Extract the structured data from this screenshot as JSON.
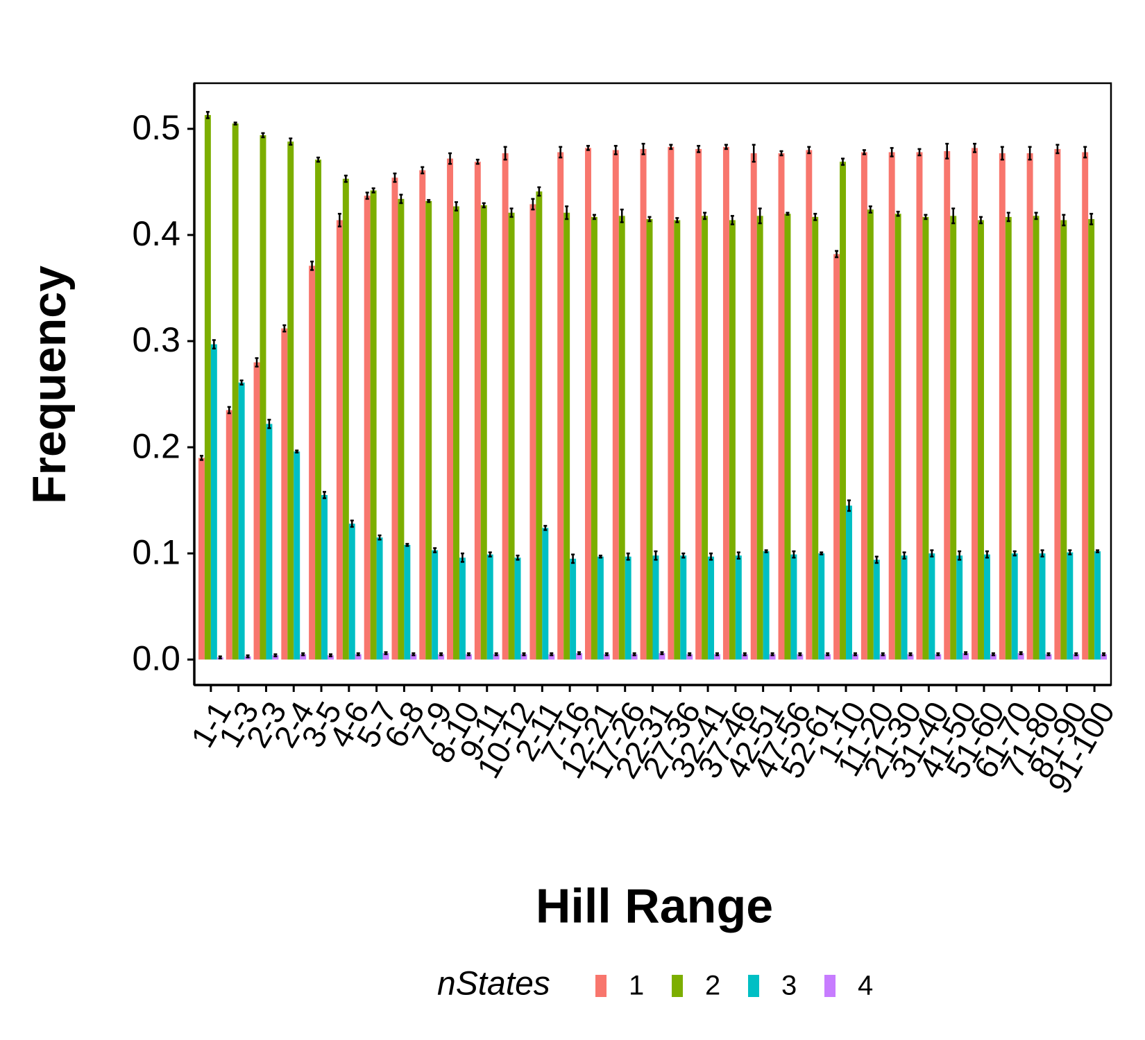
{
  "chart_data": {
    "type": "bar",
    "x_label": "Hill Range",
    "y_label": "Frequency",
    "legend_title": "nStates",
    "categories": [
      "1-1",
      "1-3",
      "2-3",
      "2-4",
      "3-5",
      "4-6",
      "5-7",
      "6-8",
      "7-9",
      "8-10",
      "9-11",
      "10-12",
      "2-11",
      "7-16",
      "12-21",
      "17-26",
      "22-31",
      "27-36",
      "32-41",
      "37-46",
      "42-51",
      "47-56",
      "52-61",
      "1-10",
      "11-20",
      "21-30",
      "31-40",
      "41-50",
      "51-60",
      "61-70",
      "71-80",
      "81-90",
      "91-100"
    ],
    "series": [
      {
        "name": "1",
        "color": "#F8766D",
        "values": [
          0.19,
          0.235,
          0.28,
          0.312,
          0.371,
          0.414,
          0.437,
          0.454,
          0.461,
          0.472,
          0.469,
          0.477,
          0.429,
          0.478,
          0.482,
          0.48,
          0.481,
          0.483,
          0.481,
          0.483,
          0.477,
          0.477,
          0.48,
          0.382,
          0.478,
          0.478,
          0.478,
          0.479,
          0.482,
          0.477,
          0.477,
          0.481,
          0.478
        ],
        "errors": [
          0.002,
          0.003,
          0.004,
          0.003,
          0.004,
          0.006,
          0.003,
          0.004,
          0.003,
          0.005,
          0.002,
          0.006,
          0.005,
          0.005,
          0.002,
          0.004,
          0.005,
          0.002,
          0.003,
          0.002,
          0.008,
          0.002,
          0.003,
          0.003,
          0.002,
          0.004,
          0.003,
          0.007,
          0.004,
          0.006,
          0.006,
          0.004,
          0.005
        ]
      },
      {
        "name": "2",
        "color": "#7CAE00",
        "values": [
          0.513,
          0.505,
          0.494,
          0.488,
          0.471,
          0.453,
          0.442,
          0.434,
          0.432,
          0.427,
          0.428,
          0.421,
          0.441,
          0.421,
          0.417,
          0.418,
          0.415,
          0.414,
          0.418,
          0.414,
          0.418,
          0.42,
          0.417,
          0.469,
          0.424,
          0.42,
          0.417,
          0.418,
          0.414,
          0.417,
          0.418,
          0.414,
          0.415
        ],
        "errors": [
          0.003,
          0.001,
          0.002,
          0.003,
          0.002,
          0.003,
          0.002,
          0.004,
          0.001,
          0.004,
          0.002,
          0.004,
          0.004,
          0.006,
          0.002,
          0.006,
          0.002,
          0.002,
          0.003,
          0.004,
          0.007,
          0.001,
          0.003,
          0.003,
          0.003,
          0.002,
          0.002,
          0.007,
          0.003,
          0.004,
          0.003,
          0.005,
          0.005
        ]
      },
      {
        "name": "3",
        "color": "#00BFC4",
        "values": [
          0.297,
          0.261,
          0.222,
          0.196,
          0.155,
          0.128,
          0.115,
          0.108,
          0.103,
          0.096,
          0.099,
          0.096,
          0.124,
          0.095,
          0.097,
          0.097,
          0.098,
          0.098,
          0.097,
          0.098,
          0.102,
          0.099,
          0.1,
          0.145,
          0.094,
          0.098,
          0.1,
          0.098,
          0.099,
          0.1,
          0.1,
          0.101,
          0.102
        ],
        "errors": [
          0.004,
          0.002,
          0.004,
          0.001,
          0.003,
          0.003,
          0.002,
          0.001,
          0.002,
          0.004,
          0.002,
          0.002,
          0.002,
          0.004,
          0.001,
          0.003,
          0.004,
          0.002,
          0.003,
          0.003,
          0.001,
          0.003,
          0.001,
          0.005,
          0.003,
          0.003,
          0.003,
          0.004,
          0.003,
          0.002,
          0.003,
          0.002,
          0.001
        ]
      },
      {
        "name": "4",
        "color": "#C77CFF",
        "values": [
          0.002,
          0.003,
          0.004,
          0.005,
          0.004,
          0.005,
          0.006,
          0.005,
          0.005,
          0.005,
          0.005,
          0.005,
          0.005,
          0.006,
          0.005,
          0.005,
          0.006,
          0.005,
          0.005,
          0.005,
          0.005,
          0.005,
          0.005,
          0.005,
          0.005,
          0.005,
          0.005,
          0.006,
          0.005,
          0.006,
          0.005,
          0.005,
          0.005
        ],
        "errors": [
          0.001,
          0.001,
          0.001,
          0.001,
          0.001,
          0.001,
          0.001,
          0.001,
          0.001,
          0.001,
          0.001,
          0.001,
          0.001,
          0.001,
          0.001,
          0.001,
          0.001,
          0.001,
          0.001,
          0.001,
          0.001,
          0.001,
          0.001,
          0.001,
          0.001,
          0.001,
          0.001,
          0.001,
          0.001,
          0.001,
          0.001,
          0.001,
          0.001
        ]
      }
    ],
    "ylim": [
      -0.024,
      0.543
    ],
    "yticks": [
      {
        "value": 0,
        "label": "0.0"
      },
      0.1,
      0.2,
      0.3,
      0.4,
      0.5
    ],
    "grid": false,
    "legend_position": "bottom"
  }
}
